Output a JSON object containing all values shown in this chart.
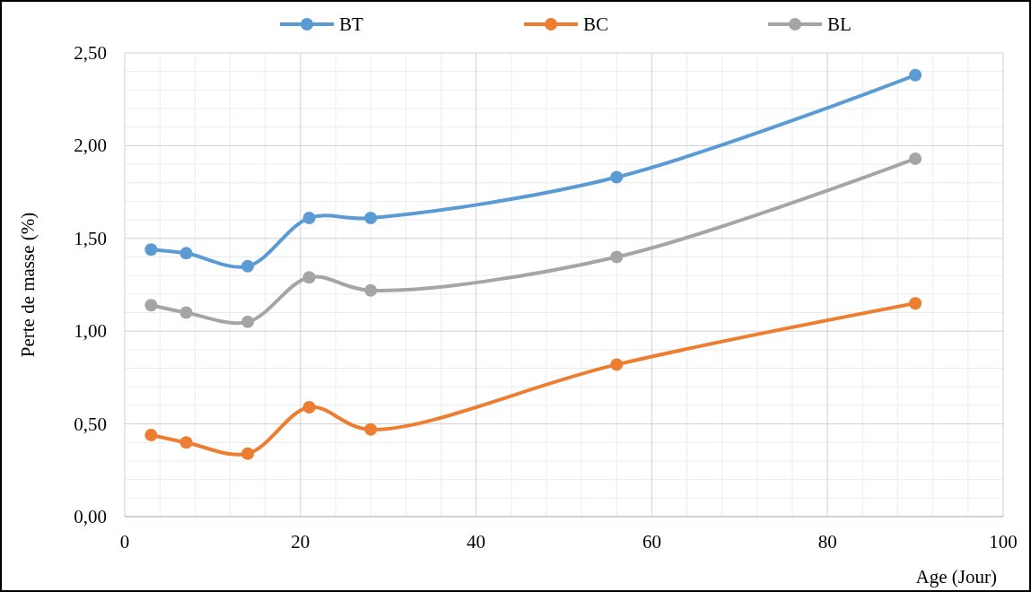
{
  "chart_data": {
    "type": "line",
    "xlabel": "Age (Jour)",
    "ylabel": "Perte de masse (%)",
    "x": [
      3,
      7,
      14,
      21,
      28,
      56,
      90
    ],
    "series": [
      {
        "name": "BT",
        "color": "#5b9bd5",
        "values": [
          1.44,
          1.42,
          1.35,
          1.61,
          1.61,
          1.83,
          2.38
        ]
      },
      {
        "name": "BC",
        "color": "#ed7d31",
        "values": [
          0.44,
          0.4,
          0.34,
          0.59,
          0.47,
          0.82,
          1.15
        ]
      },
      {
        "name": "BL",
        "color": "#a5a5a5",
        "values": [
          1.14,
          1.1,
          1.05,
          1.29,
          1.22,
          1.4,
          1.93
        ]
      }
    ],
    "xlim": [
      0,
      100
    ],
    "xticks": [
      0,
      20,
      40,
      60,
      80,
      100
    ],
    "ylim": [
      0,
      2.5
    ],
    "yticks": [
      {
        "value": 0,
        "label": "0,00"
      },
      {
        "value": 0.5,
        "label": "0,50"
      },
      {
        "value": 1,
        "label": "1,00"
      },
      {
        "value": 1.5,
        "label": "1,50"
      },
      {
        "value": 2,
        "label": "2,00"
      },
      {
        "value": 2.5,
        "label": "2,50"
      }
    ],
    "grid": true,
    "legend": "top",
    "marker": "circle",
    "line_style": "solid"
  }
}
